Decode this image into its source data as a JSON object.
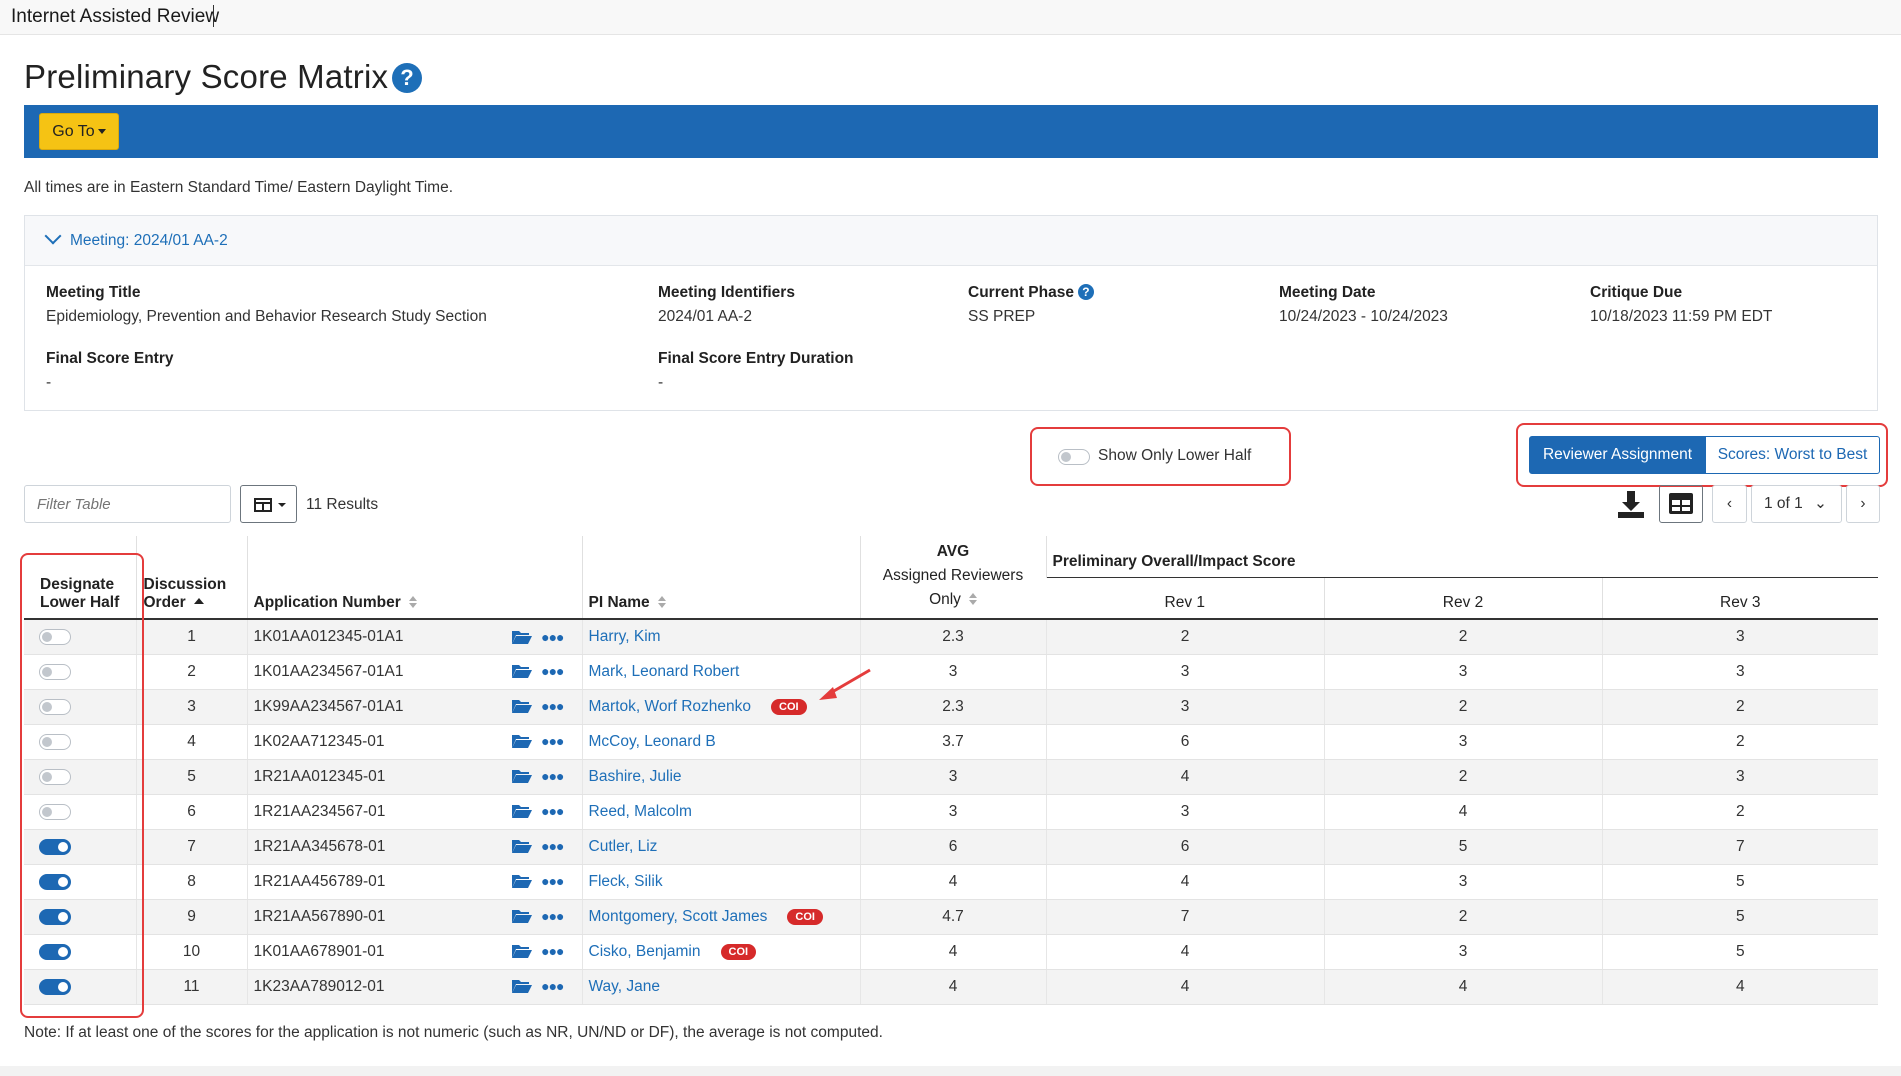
{
  "app": {
    "brand": "Internet Assisted Review"
  },
  "page": {
    "title": "Preliminary Score Matrix",
    "help_icon": "question-circle-icon"
  },
  "nav": {
    "goto_label": "Go To"
  },
  "timezone_note": "All times are in Eastern Standard Time/ Eastern Daylight Time.",
  "meeting": {
    "header": "Meeting:  2024/01 AA-2",
    "fields": {
      "title_label": "Meeting Title",
      "title_value": "Epidemiology, Prevention and Behavior Research Study Section",
      "identifiers_label": "Meeting Identifiers",
      "identifiers_value": "2024/01 AA-2",
      "phase_label": "Current Phase",
      "phase_value": "SS PREP",
      "date_label": "Meeting Date",
      "date_value": "10/24/2023 - 10/24/2023",
      "critique_label": "Critique Due",
      "critique_value": "10/18/2023 11:59 PM EDT",
      "final_entry_label": "Final Score Entry",
      "final_entry_value": "-",
      "final_duration_label": "Final Score Entry Duration",
      "final_duration_value": "-"
    }
  },
  "controls": {
    "lower_half_toggle_label": "Show Only Lower Half",
    "lower_half_toggle_on": false,
    "view_reviewer": "Reviewer Assignment",
    "view_scores": "Scores: Worst to Best",
    "filter_placeholder": "Filter Table",
    "results": "11 Results",
    "pager": "1 of 1"
  },
  "table": {
    "headers": {
      "designate": "Designate Lower Half",
      "discussion": "Discussion Order",
      "app_number": "Application Number",
      "pi_name": "PI Name",
      "avg_top": "AVG",
      "avg_bottom": "Assigned Reviewers Only",
      "overall": "Preliminary Overall/Impact Score",
      "rev1": "Rev 1",
      "rev2": "Rev 2",
      "rev3": "Rev 3"
    },
    "coi_label": "COI",
    "rows": [
      {
        "lower": false,
        "order": "1",
        "app": "1K01AA012345-01A1",
        "pi": "Harry, Kim",
        "coi": false,
        "avg": "2.3",
        "rev1": "2",
        "rev2": "2",
        "rev3": "3"
      },
      {
        "lower": false,
        "order": "2",
        "app": "1K01AA234567-01A1",
        "pi": "Mark, Leonard Robert",
        "coi": false,
        "avg": "3",
        "rev1": "3",
        "rev2": "3",
        "rev3": "3"
      },
      {
        "lower": false,
        "order": "3",
        "app": "1K99AA234567-01A1",
        "pi": "Martok, Worf Rozhenko",
        "coi": true,
        "avg": "2.3",
        "rev1": "3",
        "rev2": "2",
        "rev3": "2"
      },
      {
        "lower": false,
        "order": "4",
        "app": "1K02AA712345-01",
        "pi": "McCoy, Leonard B",
        "coi": false,
        "avg": "3.7",
        "rev1": "6",
        "rev2": "3",
        "rev3": "2"
      },
      {
        "lower": false,
        "order": "5",
        "app": "1R21AA012345-01",
        "pi": "Bashire, Julie",
        "coi": false,
        "avg": "3",
        "rev1": "4",
        "rev2": "2",
        "rev3": "3"
      },
      {
        "lower": false,
        "order": "6",
        "app": "1R21AA234567-01",
        "pi": "Reed, Malcolm",
        "coi": false,
        "avg": "3",
        "rev1": "3",
        "rev2": "4",
        "rev3": "2"
      },
      {
        "lower": true,
        "order": "7",
        "app": "1R21AA345678-01",
        "pi": "Cutler, Liz",
        "coi": false,
        "avg": "6",
        "rev1": "6",
        "rev2": "5",
        "rev3": "7"
      },
      {
        "lower": true,
        "order": "8",
        "app": "1R21AA456789-01",
        "pi": "Fleck, Silik",
        "coi": false,
        "avg": "4",
        "rev1": "4",
        "rev2": "3",
        "rev3": "5"
      },
      {
        "lower": true,
        "order": "9",
        "app": "1R21AA567890-01",
        "pi": "Montgomery, Scott James",
        "coi": true,
        "avg": "4.7",
        "rev1": "7",
        "rev2": "2",
        "rev3": "5"
      },
      {
        "lower": true,
        "order": "10",
        "app": "1K01AA678901-01",
        "pi": "Cisko, Benjamin",
        "coi": true,
        "avg": "4",
        "rev1": "4",
        "rev2": "3",
        "rev3": "5"
      },
      {
        "lower": true,
        "order": "11",
        "app": "1K23AA789012-01",
        "pi": "Way, Jane",
        "coi": false,
        "avg": "4",
        "rev1": "4",
        "rev2": "4",
        "rev3": "4"
      }
    ]
  },
  "footnote": "Note: If at least one of the scores for the application is not numeric (such as NR, UN/ND or DF), the average is not computed.",
  "colors": {
    "primary": "#1d68b3",
    "accent_yellow": "#f5c314",
    "coi_red": "#d62a2a",
    "annotation_red": "#e43c3c"
  }
}
